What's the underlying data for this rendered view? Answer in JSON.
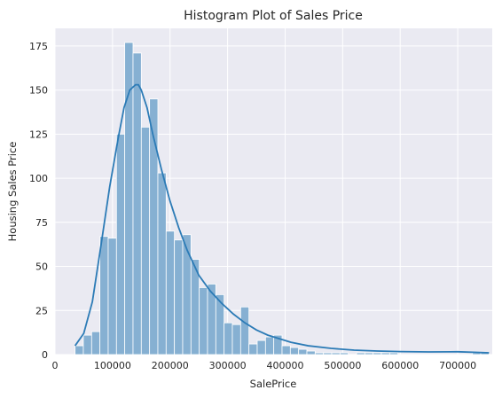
{
  "chart_data": {
    "type": "bar",
    "title": "Histogram Plot of Sales Price",
    "xlabel": "SalePrice",
    "ylabel": "Housing Sales Price",
    "xlim": [
      0,
      760000
    ],
    "ylim": [
      0,
      185
    ],
    "x_ticks": [
      0,
      100000,
      200000,
      300000,
      400000,
      500000,
      600000,
      700000
    ],
    "y_ticks": [
      0,
      25,
      50,
      75,
      100,
      125,
      150,
      175
    ],
    "grid": true,
    "background": "#eaeaf2",
    "bar_color": "#86b0d2",
    "line_color": "#2c7bb6",
    "bin_edges": [
      34900,
      49290,
      63680,
      78070,
      92460,
      106850,
      121240,
      135630,
      150020,
      164410,
      178800,
      193190,
      207580,
      221970,
      236360,
      250750,
      265140,
      279530,
      293920,
      308310,
      322700,
      337090,
      351480,
      365870,
      380260,
      394650,
      409040,
      423430,
      437820,
      452210,
      466600,
      480990,
      495380,
      509770,
      524160,
      538550,
      552940,
      567330,
      581720,
      596110,
      610500,
      624890,
      639280,
      653670,
      668060,
      682450,
      696840,
      711230,
      725620,
      740010,
      754400
    ],
    "counts": [
      5,
      11,
      13,
      67,
      66,
      125,
      177,
      171,
      129,
      145,
      103,
      70,
      65,
      68,
      54,
      38,
      40,
      34,
      18,
      17,
      27,
      6,
      8,
      10,
      11,
      5,
      4,
      3,
      2,
      1,
      1,
      1,
      1,
      0,
      1,
      1,
      1,
      1,
      1,
      0,
      0,
      0,
      0,
      0,
      0,
      0,
      0,
      0,
      1,
      1
    ],
    "kde": {
      "x": [
        34900,
        50000,
        65000,
        80000,
        95000,
        110000,
        120000,
        130000,
        140000,
        145000,
        150000,
        160000,
        170000,
        185000,
        200000,
        215000,
        230000,
        250000,
        270000,
        290000,
        310000,
        330000,
        350000,
        370000,
        390000,
        410000,
        440000,
        480000,
        520000,
        560000,
        600000,
        650000,
        700000,
        754400
      ],
      "y": [
        5,
        12,
        30,
        62,
        95,
        123,
        140,
        150,
        153,
        153,
        150,
        140,
        125,
        105,
        87,
        72,
        59,
        45,
        36,
        29,
        23,
        18,
        14,
        11,
        9,
        7,
        5,
        3.5,
        2.5,
        2,
        1.7,
        1.5,
        1.6,
        1
      ]
    }
  }
}
